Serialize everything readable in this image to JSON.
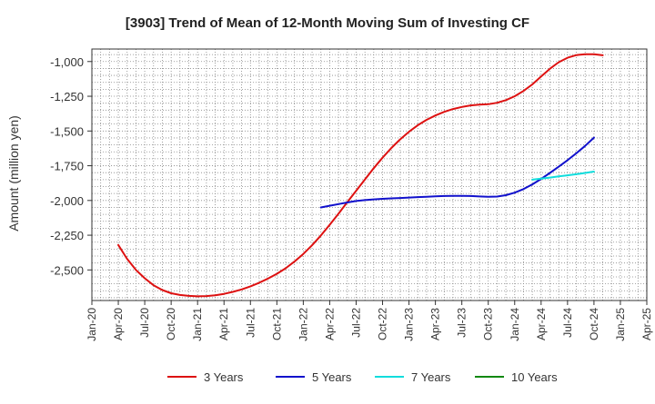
{
  "chart_data": {
    "type": "line",
    "title": "[3903]  Trend of Mean of 12-Month Moving Sum of Investing CF",
    "xlabel": "",
    "ylabel": "Amount (million yen)",
    "x_ticks": [
      "Jan-20",
      "Apr-20",
      "Jul-20",
      "Oct-20",
      "Jan-21",
      "Apr-21",
      "Jul-21",
      "Oct-21",
      "Jan-22",
      "Apr-22",
      "Jul-22",
      "Oct-22",
      "Jan-23",
      "Apr-23",
      "Jul-23",
      "Oct-23",
      "Jan-24",
      "Apr-24",
      "Jul-24",
      "Oct-24",
      "Jan-25",
      "Apr-25"
    ],
    "y_ticks": [
      -1000,
      -1250,
      -1500,
      -1750,
      -2000,
      -2250,
      -2500
    ],
    "y_tick_labels": [
      "-1,000",
      "-1,250",
      "-1,500",
      "-1,750",
      "-2,000",
      "-2,250",
      "-2,500"
    ],
    "ylim": [
      -2720,
      -910
    ],
    "grid": true,
    "legend_position": "bottom",
    "series": [
      {
        "name": "3 Years",
        "color": "#dd1111",
        "points": [
          [
            "2020-04",
            -2320
          ],
          [
            "2020-05",
            -2420
          ],
          [
            "2020-06",
            -2500
          ],
          [
            "2020-07",
            -2560
          ],
          [
            "2020-08",
            -2610
          ],
          [
            "2020-09",
            -2645
          ],
          [
            "2020-10",
            -2668
          ],
          [
            "2020-11",
            -2680
          ],
          [
            "2020-12",
            -2687
          ],
          [
            "2021-01",
            -2690
          ],
          [
            "2021-02",
            -2688
          ],
          [
            "2021-03",
            -2682
          ],
          [
            "2021-04",
            -2672
          ],
          [
            "2021-05",
            -2658
          ],
          [
            "2021-06",
            -2640
          ],
          [
            "2021-07",
            -2618
          ],
          [
            "2021-08",
            -2592
          ],
          [
            "2021-09",
            -2562
          ],
          [
            "2021-10",
            -2528
          ],
          [
            "2021-11",
            -2488
          ],
          [
            "2021-12",
            -2440
          ],
          [
            "2022-01",
            -2385
          ],
          [
            "2022-02",
            -2322
          ],
          [
            "2022-03",
            -2252
          ],
          [
            "2022-04",
            -2175
          ],
          [
            "2022-05",
            -2095
          ],
          [
            "2022-06",
            -2012
          ],
          [
            "2022-07",
            -1930
          ],
          [
            "2022-08",
            -1848
          ],
          [
            "2022-09",
            -1768
          ],
          [
            "2022-10",
            -1692
          ],
          [
            "2022-11",
            -1622
          ],
          [
            "2022-12",
            -1560
          ],
          [
            "2023-01",
            -1505
          ],
          [
            "2023-02",
            -1458
          ],
          [
            "2023-03",
            -1420
          ],
          [
            "2023-04",
            -1388
          ],
          [
            "2023-05",
            -1362
          ],
          [
            "2023-06",
            -1342
          ],
          [
            "2023-07",
            -1327
          ],
          [
            "2023-08",
            -1316
          ],
          [
            "2023-09",
            -1310
          ],
          [
            "2023-10",
            -1307
          ],
          [
            "2023-11",
            -1297
          ],
          [
            "2023-12",
            -1278
          ],
          [
            "2024-01",
            -1250
          ],
          [
            "2024-02",
            -1212
          ],
          [
            "2024-03",
            -1165
          ],
          [
            "2024-04",
            -1108
          ],
          [
            "2024-05",
            -1052
          ],
          [
            "2024-06",
            -1005
          ],
          [
            "2024-07",
            -973
          ],
          [
            "2024-08",
            -954
          ],
          [
            "2024-09",
            -947
          ],
          [
            "2024-10",
            -948
          ],
          [
            "2024-11",
            -955
          ]
        ]
      },
      {
        "name": "5 Years",
        "color": "#1111cc",
        "points": [
          [
            "2022-03",
            -2050
          ],
          [
            "2022-04",
            -2038
          ],
          [
            "2022-05",
            -2026
          ],
          [
            "2022-06",
            -2014
          ],
          [
            "2022-07",
            -2004
          ],
          [
            "2022-08",
            -1997
          ],
          [
            "2022-09",
            -1992
          ],
          [
            "2022-10",
            -1988
          ],
          [
            "2022-11",
            -1985
          ],
          [
            "2022-12",
            -1982
          ],
          [
            "2023-01",
            -1979
          ],
          [
            "2023-02",
            -1976
          ],
          [
            "2023-03",
            -1973
          ],
          [
            "2023-04",
            -1970
          ],
          [
            "2023-05",
            -1968
          ],
          [
            "2023-06",
            -1967
          ],
          [
            "2023-07",
            -1967
          ],
          [
            "2023-08",
            -1968
          ],
          [
            "2023-09",
            -1971
          ],
          [
            "2023-10",
            -1974
          ],
          [
            "2023-11",
            -1972
          ],
          [
            "2023-12",
            -1962
          ],
          [
            "2024-01",
            -1944
          ],
          [
            "2024-02",
            -1918
          ],
          [
            "2024-03",
            -1884
          ],
          [
            "2024-04",
            -1845
          ],
          [
            "2024-05",
            -1802
          ],
          [
            "2024-06",
            -1757
          ],
          [
            "2024-07",
            -1710
          ],
          [
            "2024-08",
            -1660
          ],
          [
            "2024-09",
            -1607
          ],
          [
            "2024-10",
            -1548
          ]
        ]
      },
      {
        "name": "7 Years",
        "color": "#11dddd",
        "points": [
          [
            "2024-03",
            -1850
          ],
          [
            "2024-04",
            -1843
          ],
          [
            "2024-05",
            -1835
          ],
          [
            "2024-06",
            -1827
          ],
          [
            "2024-07",
            -1819
          ],
          [
            "2024-08",
            -1811
          ],
          [
            "2024-09",
            -1802
          ],
          [
            "2024-10",
            -1792
          ]
        ]
      },
      {
        "name": "10 Years",
        "color": "#118811",
        "points": []
      }
    ]
  }
}
